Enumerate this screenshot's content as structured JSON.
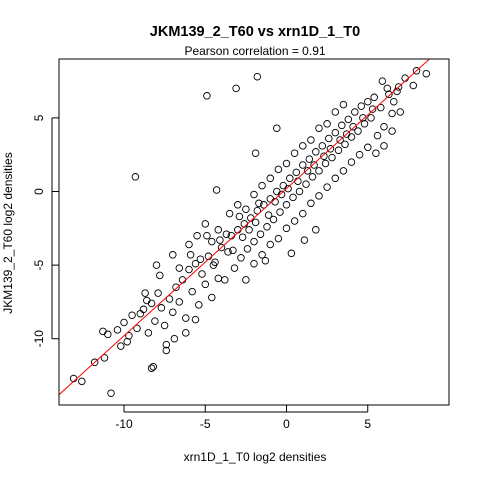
{
  "chart_data": {
    "type": "scatter",
    "title": "JKM139_2_T60 vs xrn1D_1_T0",
    "subtitle": "Pearson correlation =  0.91",
    "xlabel": "xrn1D_1_T0 log2 densities",
    "ylabel": "JKM139_2_T60 log2 densities",
    "xlim": [
      -14,
      10
    ],
    "ylim": [
      -14.5,
      9
    ],
    "xticks": [
      -10,
      -5,
      0,
      5
    ],
    "yticks": [
      -10,
      -5,
      0,
      5
    ],
    "grid": false,
    "point_style": "open-circle",
    "point_color": "#000000",
    "fit_line": {
      "intercept": 0.2,
      "slope": 1.0,
      "color": "#ff0000"
    },
    "points": [
      [
        -13.1,
        -12.7
      ],
      [
        -11.2,
        -11.3
      ],
      [
        -10.8,
        -13.7
      ],
      [
        -11.3,
        -9.5
      ],
      [
        -10.2,
        -10.5
      ],
      [
        -10.0,
        -8.9
      ],
      [
        -9.8,
        -10.2
      ],
      [
        -9.5,
        -8.4
      ],
      [
        -9.2,
        -9.3
      ],
      [
        -8.8,
        -8.0
      ],
      [
        -8.5,
        -9.6
      ],
      [
        -8.3,
        -7.6
      ],
      [
        -8.1,
        -8.8
      ],
      [
        -7.9,
        -6.9
      ],
      [
        -7.7,
        -7.9
      ],
      [
        -7.5,
        -9.1
      ],
      [
        -7.2,
        -7.3
      ],
      [
        -7.0,
        -8.2
      ],
      [
        -6.8,
        -6.5
      ],
      [
        -6.6,
        -7.5
      ],
      [
        -8.7,
        -6.9
      ],
      [
        -8.0,
        -5.0
      ],
      [
        -7.4,
        -10.8
      ],
      [
        -8.2,
        -11.9
      ],
      [
        -6.9,
        -10.0
      ],
      [
        -6.4,
        -6.0
      ],
      [
        -6.2,
        -8.6
      ],
      [
        -6.0,
        -5.3
      ],
      [
        -5.8,
        -6.8
      ],
      [
        -5.6,
        -4.9
      ],
      [
        -5.4,
        -7.7
      ],
      [
        -5.2,
        -5.6
      ],
      [
        -5.0,
        -6.3
      ],
      [
        -4.8,
        -4.4
      ],
      [
        -4.6,
        -7.2
      ],
      [
        -4.4,
        -4.8
      ],
      [
        -4.2,
        -5.9
      ],
      [
        -4.0,
        -3.8
      ],
      [
        -3.8,
        -6.0
      ],
      [
        -3.6,
        -4.1
      ],
      [
        -3.4,
        -3.0
      ],
      [
        -3.2,
        -5.2
      ],
      [
        -3.0,
        -2.6
      ],
      [
        -2.8,
        -4.5
      ],
      [
        -2.6,
        -2.2
      ],
      [
        -2.4,
        -3.9
      ],
      [
        -2.2,
        -1.8
      ],
      [
        -2.0,
        -3.4
      ],
      [
        -1.8,
        -1.3
      ],
      [
        -1.6,
        -2.9
      ],
      [
        -1.4,
        -0.9
      ],
      [
        -1.2,
        -2.4
      ],
      [
        -1.0,
        -0.5
      ],
      [
        -0.8,
        -1.9
      ],
      [
        -0.6,
        0.0
      ],
      [
        -0.4,
        -1.4
      ],
      [
        -0.2,
        0.4
      ],
      [
        0.0,
        -0.9
      ],
      [
        0.2,
        0.9
      ],
      [
        0.4,
        -0.4
      ],
      [
        0.6,
        1.3
      ],
      [
        0.8,
        0.0
      ],
      [
        1.0,
        1.8
      ],
      [
        1.2,
        0.5
      ],
      [
        1.4,
        2.2
      ],
      [
        1.6,
        1.0
      ],
      [
        1.8,
        2.7
      ],
      [
        2.0,
        1.4
      ],
      [
        2.2,
        3.1
      ],
      [
        2.4,
        1.9
      ],
      [
        2.6,
        3.6
      ],
      [
        2.8,
        2.3
      ],
      [
        3.0,
        4.0
      ],
      [
        3.2,
        2.8
      ],
      [
        3.4,
        4.5
      ],
      [
        3.6,
        3.2
      ],
      [
        3.8,
        4.9
      ],
      [
        4.0,
        3.7
      ],
      [
        4.2,
        5.4
      ],
      [
        4.4,
        4.1
      ],
      [
        4.6,
        5.8
      ],
      [
        4.8,
        4.6
      ],
      [
        5.0,
        6.1
      ],
      [
        5.2,
        5.0
      ],
      [
        5.4,
        6.4
      ],
      [
        5.6,
        3.8
      ],
      [
        5.8,
        5.7
      ],
      [
        6.0,
        4.4
      ],
      [
        6.3,
        6.6
      ],
      [
        6.5,
        5.3
      ],
      [
        -6.0,
        -3.6
      ],
      [
        -5.5,
        -3.0
      ],
      [
        -5.0,
        -2.2
      ],
      [
        -4.6,
        -3.4
      ],
      [
        -4.2,
        -2.6
      ],
      [
        -3.5,
        -1.5
      ],
      [
        -3.0,
        -0.9
      ],
      [
        -2.5,
        -1.2
      ],
      [
        -2.0,
        -0.2
      ],
      [
        -1.5,
        0.4
      ],
      [
        -1.0,
        0.9
      ],
      [
        -0.5,
        1.5
      ],
      [
        0.0,
        1.9
      ],
      [
        0.5,
        2.6
      ],
      [
        1.0,
        3.1
      ],
      [
        1.5,
        3.5
      ],
      [
        2.0,
        4.3
      ],
      [
        2.5,
        4.6
      ],
      [
        3.0,
        5.4
      ],
      [
        3.5,
        5.9
      ],
      [
        -2.5,
        -6.0
      ],
      [
        -2.0,
        -4.9
      ],
      [
        -1.5,
        -4.3
      ],
      [
        -1.0,
        -3.6
      ],
      [
        -0.5,
        -3.2
      ],
      [
        0.0,
        -2.5
      ],
      [
        0.5,
        -2.0
      ],
      [
        1.0,
        -1.5
      ],
      [
        1.5,
        -0.8
      ],
      [
        2.0,
        -0.3
      ],
      [
        2.5,
        0.3
      ],
      [
        3.0,
        0.9
      ],
      [
        3.5,
        1.4
      ],
      [
        4.0,
        2.0
      ],
      [
        4.5,
        2.5
      ],
      [
        5.0,
        3.0
      ],
      [
        5.5,
        2.6
      ],
      [
        6.0,
        3.1
      ],
      [
        6.5,
        4.1
      ],
      [
        -1.3,
        -4.7
      ],
      [
        0.3,
        -4.2
      ],
      [
        1.1,
        -3.3
      ],
      [
        1.8,
        -2.6
      ],
      [
        -3.1,
        7.0
      ],
      [
        -4.9,
        6.5
      ],
      [
        -1.8,
        7.8
      ],
      [
        -9.3,
        1.0
      ],
      [
        -4.3,
        0.1
      ],
      [
        -1.9,
        2.6
      ],
      [
        -0.6,
        4.3
      ],
      [
        8.0,
        8.2
      ],
      [
        8.6,
        8.0
      ],
      [
        7.3,
        7.7
      ],
      [
        7.8,
        7.2
      ],
      [
        6.8,
        6.8
      ],
      [
        5.9,
        7.5
      ],
      [
        6.6,
        6.1
      ],
      [
        7.0,
        5.4
      ],
      [
        6.2,
        7.0
      ],
      [
        6.9,
        7.1
      ],
      [
        -7.0,
        -4.3
      ],
      [
        -6.6,
        -5.2
      ],
      [
        -5.9,
        -4.3
      ],
      [
        -5.3,
        -4.6
      ],
      [
        -4.9,
        -3.0
      ],
      [
        -4.5,
        -5.0
      ],
      [
        -4.1,
        -3.3
      ],
      [
        -3.7,
        -2.9
      ],
      [
        -3.3,
        -4.0
      ],
      [
        -2.9,
        -1.7
      ],
      [
        -2.7,
        -3.1
      ],
      [
        -2.3,
        -2.6
      ],
      [
        -1.9,
        -2.1
      ],
      [
        -1.7,
        -0.8
      ],
      [
        -1.1,
        -1.6
      ],
      [
        -0.7,
        -0.7
      ],
      [
        -0.3,
        -0.2
      ],
      [
        0.1,
        0.2
      ],
      [
        0.7,
        0.7
      ],
      [
        1.3,
        1.4
      ],
      [
        1.7,
        1.8
      ],
      [
        2.3,
        2.4
      ],
      [
        2.7,
        2.9
      ],
      [
        3.3,
        3.5
      ],
      [
        3.7,
        3.9
      ],
      [
        4.1,
        4.4
      ],
      [
        4.7,
        5.0
      ],
      [
        5.3,
        5.6
      ],
      [
        -7.8,
        -5.7
      ],
      [
        -8.6,
        -7.4
      ],
      [
        -9.0,
        -8.3
      ],
      [
        -9.7,
        -9.8
      ],
      [
        -10.4,
        -9.4
      ],
      [
        -6.2,
        -9.6
      ],
      [
        -5.6,
        -8.7
      ],
      [
        -7.4,
        -10.4
      ],
      [
        -8.3,
        -12.0
      ],
      [
        -11.0,
        -9.7
      ],
      [
        -11.8,
        -11.6
      ],
      [
        -12.6,
        -12.9
      ]
    ]
  }
}
